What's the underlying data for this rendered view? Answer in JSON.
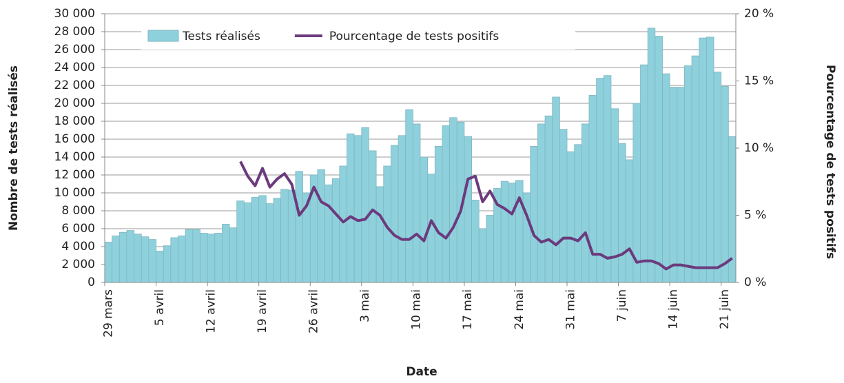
{
  "chart_data": {
    "type": "bar-line",
    "x_label": "Date",
    "y_label": "Nombre de tests réalisés",
    "y2_label": "Pourcentage de tests positifs",
    "categories": [
      "29 mars",
      null,
      null,
      null,
      null,
      null,
      null,
      "5 avril",
      null,
      null,
      null,
      null,
      null,
      null,
      "12 avril",
      null,
      null,
      null,
      null,
      null,
      null,
      "19 avril",
      null,
      null,
      null,
      null,
      null,
      null,
      "26 avril",
      null,
      null,
      null,
      null,
      null,
      null,
      "3 mai",
      null,
      null,
      null,
      null,
      null,
      null,
      "10 mai",
      null,
      null,
      null,
      null,
      null,
      null,
      "17 mai",
      null,
      null,
      null,
      null,
      null,
      null,
      "24 mai",
      null,
      null,
      null,
      null,
      null,
      null,
      "31 mai",
      null,
      null,
      null,
      null,
      null,
      null,
      "7 juin",
      null,
      null,
      null,
      null,
      null,
      null,
      "14 juin",
      null,
      null,
      null,
      null,
      null,
      null,
      "21 juin",
      null
    ],
    "series": [
      {
        "name": "Tests réalisés",
        "kind": "bar",
        "color": "#8ed1dc",
        "values": [
          4500,
          5200,
          5600,
          5800,
          5400,
          5100,
          4800,
          3500,
          4100,
          5000,
          5200,
          5900,
          5900,
          5500,
          5400,
          5500,
          6500,
          6100,
          9100,
          8900,
          9500,
          9700,
          8800,
          9400,
          10400,
          10300,
          12400,
          10000,
          12000,
          12600,
          10900,
          11600,
          13000,
          16600,
          16400,
          17300,
          14700,
          10700,
          13000,
          15300,
          16400,
          19300,
          17700,
          14000,
          12100,
          15200,
          17500,
          18400,
          17900,
          16300,
          9200,
          6000,
          7500,
          10500,
          11300,
          11100,
          11400,
          10000,
          15200,
          17700,
          18600,
          20700,
          17100,
          14600,
          15400,
          17700,
          20900,
          22800,
          23100,
          19400,
          15500,
          13700,
          20000,
          24300,
          28400,
          27500,
          23300,
          21800,
          21800,
          24200,
          25300,
          27300,
          27400,
          23500,
          21900,
          16300
        ]
      },
      {
        "name": "Pourcentage de tests positifs",
        "kind": "line",
        "axis": "y2",
        "color": "#6b3a7d",
        "values": [
          null,
          null,
          null,
          null,
          null,
          null,
          null,
          null,
          null,
          null,
          null,
          null,
          null,
          null,
          null,
          null,
          null,
          null,
          9.0,
          7.9,
          7.2,
          8.5,
          7.1,
          7.7,
          8.1,
          7.3,
          5.0,
          5.7,
          7.1,
          6.0,
          5.7,
          5.1,
          4.5,
          4.9,
          4.6,
          4.7,
          5.4,
          5.0,
          4.1,
          3.5,
          3.2,
          3.2,
          3.6,
          3.1,
          4.6,
          3.7,
          3.3,
          4.1,
          5.3,
          7.7,
          7.9,
          6.0,
          6.8,
          5.8,
          5.5,
          5.1,
          6.3,
          5.0,
          3.5,
          3.0,
          3.2,
          2.8,
          3.3,
          3.3,
          3.1,
          3.7,
          2.1,
          2.1,
          1.8,
          1.9,
          2.1,
          2.5,
          1.5,
          1.6,
          1.6,
          1.4,
          1.0,
          1.3,
          1.3,
          1.2,
          1.1,
          1.1,
          1.1,
          1.1,
          1.4,
          1.8
        ]
      }
    ],
    "ylim": [
      0,
      30000
    ],
    "yticks": [
      0,
      {
        "value": 2000,
        "label": "2 000"
      },
      {
        "value": 4000,
        "label": "4 000"
      },
      {
        "value": 6000,
        "label": "6 000"
      },
      {
        "value": 8000,
        "label": "8 000"
      },
      {
        "value": 10000,
        "label": "10 000"
      },
      {
        "value": 12000,
        "label": "12 000"
      },
      {
        "value": 14000,
        "label": "14 000"
      },
      {
        "value": 16000,
        "label": "16 000"
      },
      {
        "value": 18000,
        "label": "18 000"
      },
      {
        "value": 20000,
        "label": "20 000"
      },
      {
        "value": 22000,
        "label": "22 000"
      },
      {
        "value": 24000,
        "label": "24 000"
      },
      {
        "value": 26000,
        "label": "26 000"
      },
      {
        "value": 28000,
        "label": "28 000"
      },
      {
        "value": 30000,
        "label": "30 000"
      }
    ],
    "y2lim": [
      0,
      20
    ],
    "y2ticks": [
      {
        "value": 0,
        "label": "0 %"
      },
      {
        "value": 5,
        "label": "5 %"
      },
      {
        "value": 10,
        "label": "10 %"
      },
      {
        "value": 15,
        "label": "15 %"
      },
      {
        "value": 20,
        "label": "20 %"
      }
    ],
    "grid": true,
    "legend": "top"
  }
}
